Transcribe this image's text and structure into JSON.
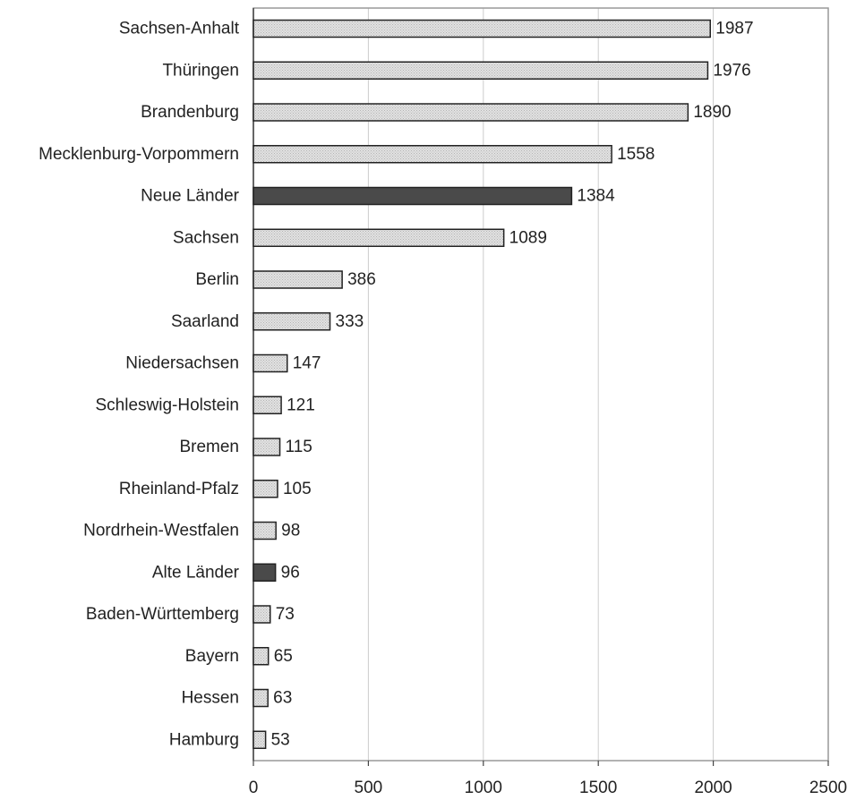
{
  "chart_data": {
    "type": "bar",
    "orientation": "horizontal",
    "title": "",
    "xlabel": "",
    "ylabel": "",
    "xlim": [
      0,
      2500
    ],
    "xticks": [
      0,
      500,
      1000,
      1500,
      2000,
      2500
    ],
    "grid": "vertical",
    "legend": "none",
    "categories": [
      "Sachsen-Anhalt",
      "Thüringen",
      "Brandenburg",
      "Mecklenburg-Vorpommern",
      "Neue Länder",
      "Sachsen",
      "Berlin",
      "Saarland",
      "Niedersachsen",
      "Schleswig-Holstein",
      "Bremen",
      "Rheinland-Pfalz",
      "Nordrhein-Westfalen",
      "Alte Länder",
      "Baden-Württemberg",
      "Bayern",
      "Hessen",
      "Hamburg"
    ],
    "values": [
      1987,
      1976,
      1890,
      1558,
      1384,
      1089,
      386,
      333,
      147,
      121,
      115,
      105,
      98,
      96,
      73,
      65,
      63,
      53
    ],
    "highlighted": [
      "Neue Länder",
      "Alte Länder"
    ],
    "colors": {
      "bar_fill": "#e2e2e2",
      "bar_stipple": "#b4b4b4",
      "bar_highlight": "#4a4a4a",
      "bar_stroke": "#222222",
      "gridline": "#cccccc",
      "plot_border": "#999999",
      "text": "#222222"
    }
  }
}
